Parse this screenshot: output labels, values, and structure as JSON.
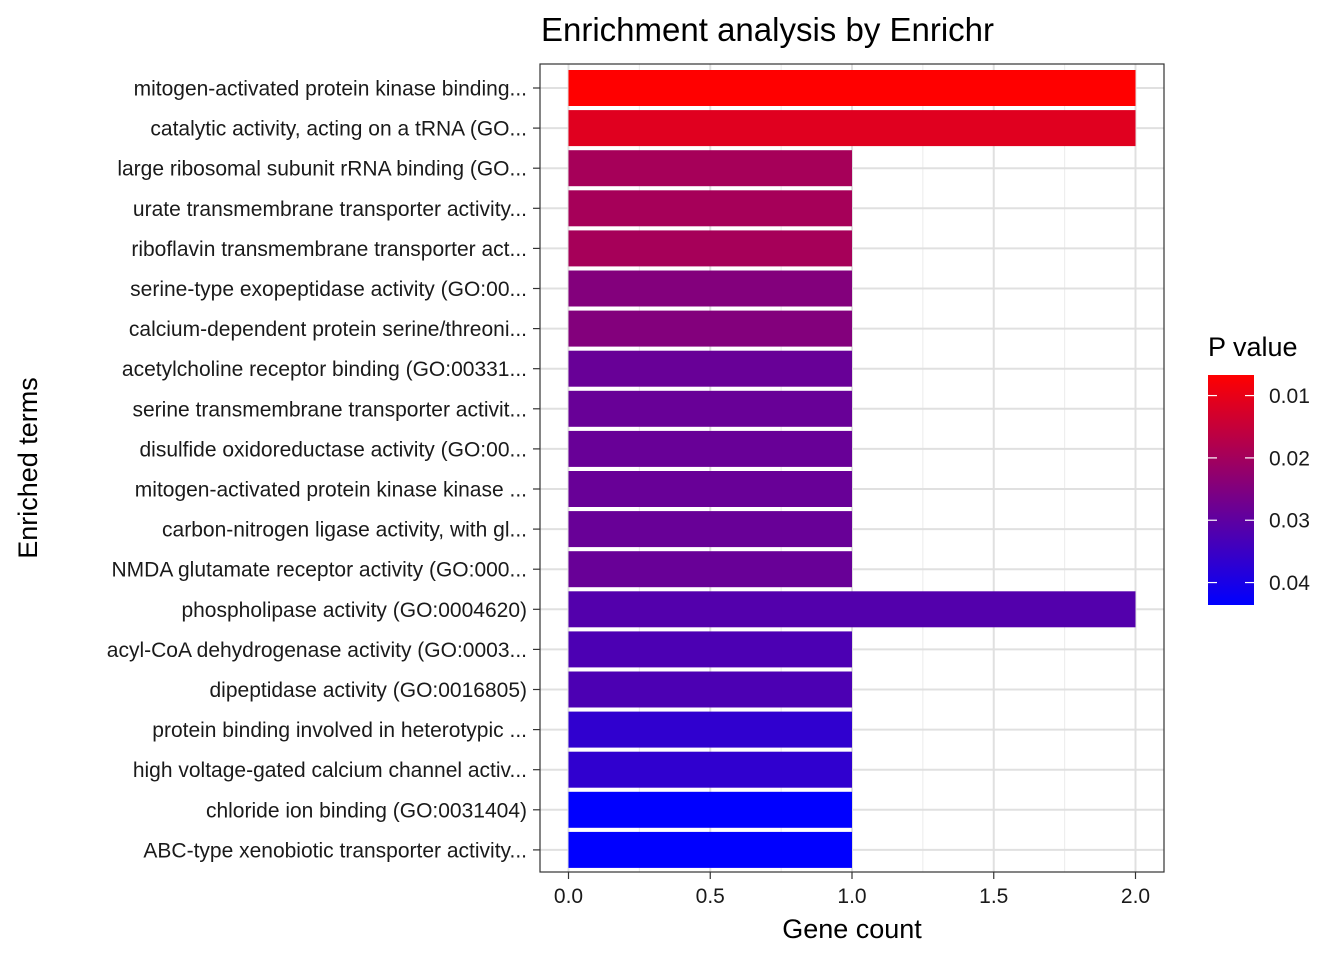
{
  "chart_data": {
    "type": "bar",
    "orientation": "horizontal",
    "title": "Enrichment analysis by Enrichr",
    "xlabel": "Gene count",
    "ylabel": "Enriched terms",
    "xlim": [
      0,
      2
    ],
    "x_ticks": [
      "0.0",
      "0.5",
      "1.0",
      "1.5",
      "2.0"
    ],
    "x_tick_values": [
      0,
      0.5,
      1.0,
      1.5,
      2.0
    ],
    "grid": true,
    "categories": [
      "mitogen-activated protein kinase binding...",
      "catalytic activity, acting on a tRNA (GO...",
      "large ribosomal subunit rRNA binding (GO...",
      "urate transmembrane transporter activity...",
      "riboflavin transmembrane transporter act...",
      "serine-type exopeptidase activity (GO:00...",
      "calcium-dependent protein serine/threoni...",
      "acetylcholine receptor binding (GO:00331...",
      "serine transmembrane transporter activit...",
      "disulfide oxidoreductase activity (GO:00...",
      "mitogen-activated protein kinase kinase ...",
      "carbon-nitrogen ligase activity, with gl...",
      "NMDA glutamate receptor activity (GO:000...",
      "phospholipase activity (GO:0004620)",
      "acyl-CoA dehydrogenase activity (GO:0003...",
      "dipeptidase activity (GO:0016805)",
      "protein binding involved in heterotypic ...",
      "high voltage-gated calcium channel activ...",
      "chloride ion binding (GO:0031404)",
      "ABC-type xenobiotic transporter activity..."
    ],
    "values": [
      2,
      2,
      1,
      1,
      1,
      1,
      1,
      1,
      1,
      1,
      1,
      1,
      1,
      2,
      1,
      1,
      1,
      1,
      1,
      1
    ],
    "p_values": [
      0.0067,
      0.0112,
      0.0196,
      0.0196,
      0.0196,
      0.0246,
      0.0246,
      0.0286,
      0.0286,
      0.0286,
      0.0286,
      0.0286,
      0.0286,
      0.0316,
      0.0326,
      0.0326,
      0.0366,
      0.0366,
      0.0436,
      0.0436
    ],
    "legend": {
      "title": "P value",
      "position": "right",
      "type": "colorbar",
      "low_value": 0.0067,
      "high_value": 0.0436,
      "low_color": "#ff0000",
      "high_color": "#0000ff",
      "ticks": [
        "0.01",
        "0.02",
        "0.03",
        "0.04"
      ],
      "tick_values": [
        0.01,
        0.02,
        0.03,
        0.04
      ]
    }
  }
}
